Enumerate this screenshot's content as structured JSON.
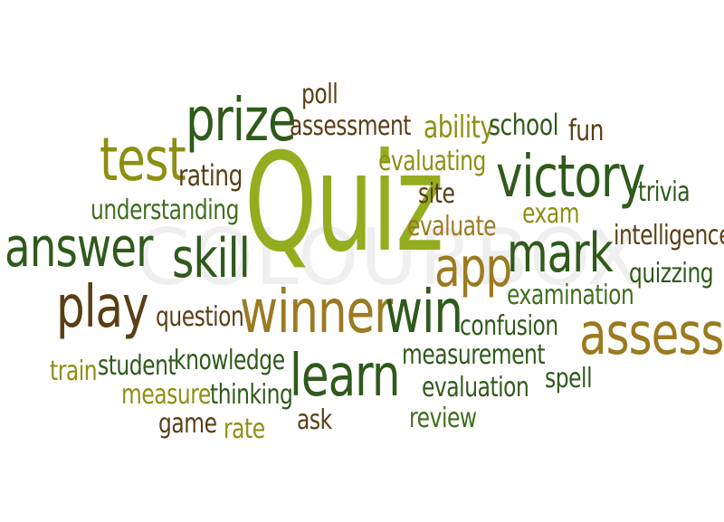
{
  "words": {
    "quiz": "Quiz",
    "prize": "prize",
    "test": "test",
    "poll": "poll",
    "assessment": "assessment",
    "ability": "ability",
    "school": "school",
    "fun": "fun",
    "evaluating": "evaluating",
    "victory": "victory",
    "rating": "rating",
    "trivia": "trivia",
    "understanding": "understanding",
    "site": "site",
    "exam": "exam",
    "answer": "answer",
    "evaluate": "evaluate",
    "intelligence": "intelligence",
    "mark": "mark",
    "skill": "skill",
    "app": "app",
    "quizzing": "quizzing",
    "play": "play",
    "examination": "examination",
    "question": "question",
    "winner": "winner",
    "win": "win",
    "confusion": "confusion",
    "assess": "assess",
    "train": "train",
    "student": "student",
    "knowledge": "knowledge",
    "measurement": "measurement",
    "learn": "learn",
    "spell": "spell",
    "measure": "measure",
    "thinking": "thinking",
    "evaluation": "evaluation",
    "game": "game",
    "rate": "rate",
    "ask": "ask",
    "review": "review"
  },
  "watermark": "COLOURBOX"
}
